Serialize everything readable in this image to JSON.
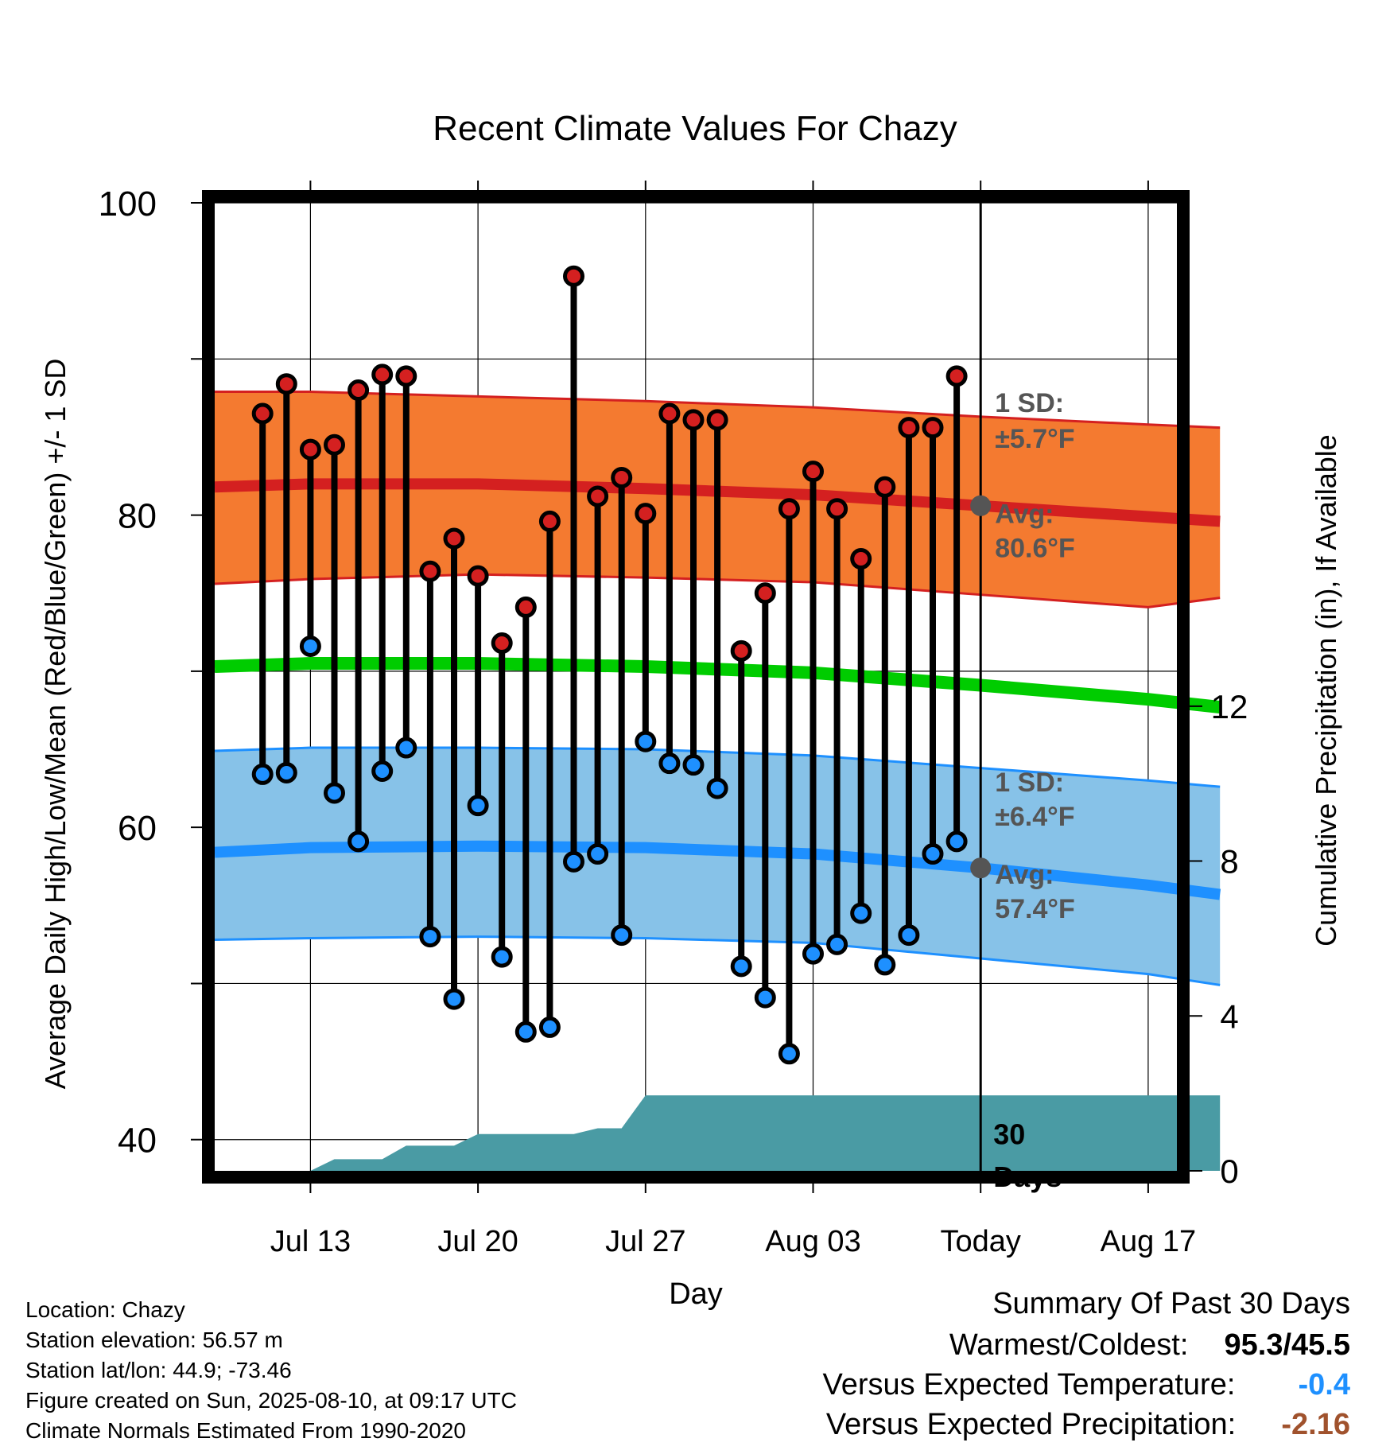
{
  "chart_data": {
    "type": "line",
    "title": "Recent Climate Values For Chazy",
    "xlabel": "Day",
    "ylabel": "Average Daily High/Low/Mean (Red/Blue/Green) +/- 1 SD",
    "y2label": "Cumulative Precipitation (in), If Available",
    "ylim": [
      38,
      100
    ],
    "y2lim": [
      0,
      25
    ],
    "yticks": [
      40,
      60,
      80,
      100
    ],
    "y2ticks": [
      0,
      4,
      8,
      12
    ],
    "xrange_days": [
      "Jul 09",
      "Aug 20"
    ],
    "xticks": [
      {
        "date": "Jul 13",
        "label": "Jul 13"
      },
      {
        "date": "Jul 20",
        "label": "Jul 20"
      },
      {
        "date": "Jul 27",
        "label": "Jul 27"
      },
      {
        "date": "Aug 03",
        "label": "Aug 03"
      },
      {
        "date": "Aug 10",
        "label": "Today"
      },
      {
        "date": "Aug 17",
        "label": "Aug 17"
      }
    ],
    "grid": true,
    "today": "Aug 10",
    "period_label": [
      "30",
      "Days"
    ],
    "colors": {
      "high_band": "#f47a30",
      "high_line": "#d42020",
      "low_band": "#87c2e8",
      "low_line": "#1e90ff",
      "mean_line": "#00cc00",
      "precip": "#4a9ba4",
      "high_point": "#d42020",
      "low_point": "#1e90ff",
      "avg_marker": "#555555",
      "annotation": "#555555"
    },
    "normals": {
      "dates": [
        "Jul 09",
        "Jul 13",
        "Jul 20",
        "Jul 27",
        "Aug 03",
        "Aug 10",
        "Aug 17",
        "Aug 20"
      ],
      "high_mean": [
        81.8,
        82.0,
        82.0,
        81.7,
        81.3,
        80.6,
        79.9,
        79.6
      ],
      "high_upper": [
        87.9,
        87.9,
        87.6,
        87.3,
        86.9,
        86.3,
        85.8,
        85.6
      ],
      "high_lower": [
        75.6,
        75.9,
        76.2,
        76.0,
        75.7,
        74.9,
        74.1,
        74.7
      ],
      "low_mean": [
        58.4,
        58.7,
        58.8,
        58.7,
        58.3,
        57.4,
        56.3,
        55.7
      ],
      "low_upper": [
        64.9,
        65.1,
        65.1,
        65.0,
        64.6,
        63.8,
        63.0,
        62.6
      ],
      "low_lower": [
        52.8,
        52.9,
        53.0,
        52.9,
        52.6,
        51.6,
        50.6,
        49.9
      ],
      "mean": [
        70.3,
        70.5,
        70.5,
        70.3,
        69.9,
        69.1,
        68.2,
        67.7
      ]
    },
    "series": [
      {
        "name": "High",
        "dates": [
          "Jul 11",
          "Jul 12",
          "Jul 13",
          "Jul 14",
          "Jul 15",
          "Jul 16",
          "Jul 17",
          "Jul 18",
          "Jul 19",
          "Jul 20",
          "Jul 21",
          "Jul 22",
          "Jul 23",
          "Jul 24",
          "Jul 25",
          "Jul 26",
          "Jul 27",
          "Jul 28",
          "Jul 29",
          "Jul 30",
          "Jul 31",
          "Aug 01",
          "Aug 02",
          "Aug 03",
          "Aug 04",
          "Aug 05",
          "Aug 06",
          "Aug 07",
          "Aug 08",
          "Aug 09"
        ],
        "values": [
          86.5,
          88.4,
          84.2,
          84.5,
          88.0,
          89.0,
          88.9,
          76.4,
          78.5,
          76.1,
          71.8,
          74.1,
          79.6,
          95.3,
          81.2,
          82.4,
          80.1,
          86.5,
          86.1,
          86.1,
          71.3,
          75.0,
          80.4,
          82.8,
          80.4,
          77.2,
          81.8,
          85.6,
          85.6,
          88.9
        ]
      },
      {
        "name": "Low",
        "dates": [
          "Jul 11",
          "Jul 12",
          "Jul 13",
          "Jul 14",
          "Jul 15",
          "Jul 16",
          "Jul 17",
          "Jul 18",
          "Jul 19",
          "Jul 20",
          "Jul 21",
          "Jul 22",
          "Jul 23",
          "Jul 24",
          "Jul 25",
          "Jul 26",
          "Jul 27",
          "Jul 28",
          "Jul 29",
          "Jul 30",
          "Jul 31",
          "Aug 01",
          "Aug 02",
          "Aug 03",
          "Aug 04",
          "Aug 05",
          "Aug 06",
          "Aug 07",
          "Aug 08",
          "Aug 09"
        ],
        "values": [
          63.4,
          63.5,
          71.6,
          62.2,
          59.1,
          63.6,
          65.1,
          53.0,
          49.0,
          61.4,
          51.7,
          46.9,
          47.2,
          57.8,
          58.3,
          53.1,
          65.5,
          64.1,
          64.0,
          62.5,
          51.1,
          49.1,
          45.5,
          51.9,
          52.5,
          54.5,
          51.2,
          53.1,
          58.3,
          59.1
        ]
      },
      {
        "name": "Cumulative Precipitation",
        "dates": [
          "Jul 09",
          "Jul 13",
          "Jul 14",
          "Jul 16",
          "Jul 17",
          "Jul 19",
          "Jul 20",
          "Jul 24",
          "Jul 25",
          "Jul 26",
          "Jul 27",
          "Aug 20"
        ],
        "values": [
          0,
          0,
          0.3,
          0.3,
          0.65,
          0.65,
          0.95,
          0.95,
          1.1,
          1.1,
          1.95,
          1.95
        ]
      }
    ],
    "annotations": {
      "high": {
        "sd_label": "1 SD:",
        "sd_value": "±5.7°F",
        "avg_label": "Avg:",
        "avg_value": "80.6°F",
        "avg": 80.6
      },
      "low": {
        "sd_label": "1 SD:",
        "sd_value": "±6.4°F",
        "avg_label": "Avg:",
        "avg_value": "57.4°F",
        "avg": 57.4
      }
    }
  },
  "footer": {
    "location": "Location: Chazy",
    "elevation": "Station elevation: 56.57 m",
    "latlon": "Station lat/lon: 44.9; -73.46",
    "created": "Figure created on Sun, 2025-08-10, at 09:17 UTC",
    "normals": "Climate Normals Estimated From 1990-2020"
  },
  "summary": {
    "title": "Summary Of Past 30 Days",
    "warmest_label": "Warmest/Coldest:",
    "warmest_value": "95.3/45.5",
    "temp_label": "Versus Expected Temperature:",
    "temp_value": "-0.4",
    "temp_color": "#1e90ff",
    "precip_label": "Versus Expected Precipitation:",
    "precip_value": "-2.16",
    "precip_color": "#a0522d"
  }
}
